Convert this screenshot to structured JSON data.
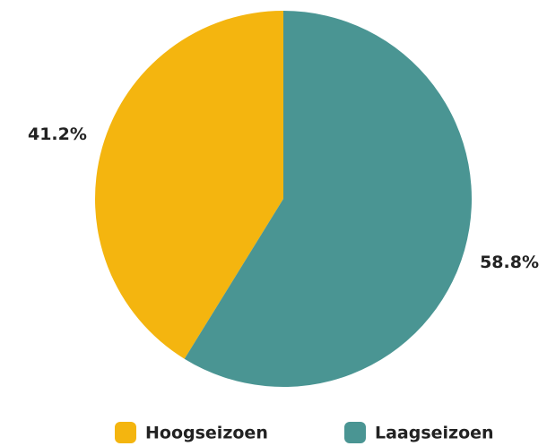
{
  "chart_data": {
    "type": "pie",
    "categories": [
      "Hoogseizoen",
      "Laagseizoen"
    ],
    "values": [
      41.2,
      58.8
    ],
    "value_labels": [
      "41.2%",
      "58.8%"
    ],
    "colors": [
      "#f4b50f",
      "#4a9593"
    ],
    "legend": "bottom"
  }
}
